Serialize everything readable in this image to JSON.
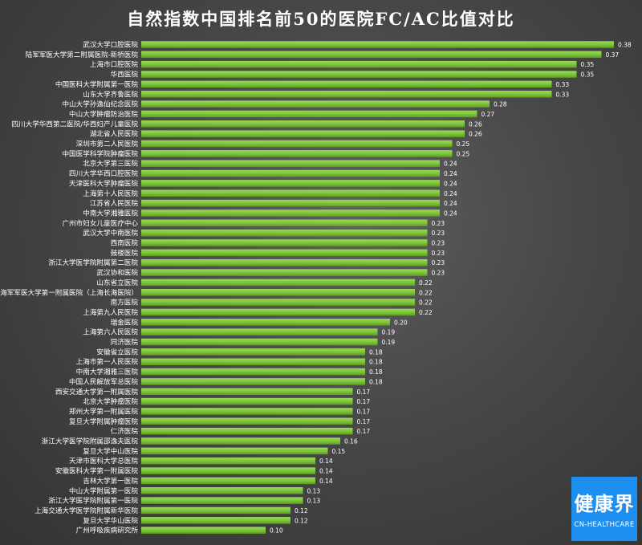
{
  "title": "自然指数中国排名前50的医院FC/AC比值对比",
  "logo": {
    "cn": "健康界",
    "en": "CN-HEALTHCARE"
  },
  "colors": {
    "bar": "#7dc63a",
    "bar_dark": "#5e9e22",
    "text": "#ffffff"
  },
  "chart_data": {
    "type": "bar",
    "orientation": "horizontal",
    "title": "自然指数中国排名前50的医院FC/AC比值对比",
    "xlabel": "",
    "ylabel": "",
    "xlim": [
      0,
      0.4
    ],
    "grid": false,
    "categories": [
      "武汉大学口腔医院",
      "陆军军医大学第二附属医院-新桥医院",
      "上海市口腔医院",
      "华西医院",
      "中国医科大学附属第一医院",
      "山东大学齐鲁医院",
      "中山大学孙逸仙纪念医院",
      "中山大学肿瘤防治医院",
      "四川大学华西第二医院/华西妇产儿童医院",
      "湖北省人民医院",
      "深圳市第二人民医院",
      "中国医学科学院肿瘤医院",
      "北京大学第三医院",
      "四川大学华西口腔医院",
      "天津医科大学肿瘤医院",
      "上海第十人民医院",
      "江苏省人民医院",
      "中南大学湘雅医院",
      "广州市妇女儿童医疗中心",
      "武汉大学中南医院",
      "西南医院",
      "鼓楼医院",
      "浙江大学医学院附属第二医院",
      "武汉协和医院",
      "山东省立医院",
      "海军军医大学第一附属医院（上海长海医院）",
      "南方医院",
      "上海第九人民医院",
      "瑞金医院",
      "上海第六人民医院",
      "同济医院",
      "安徽省立医院",
      "上海市第一人民医院",
      "中南大学湘雅三医院",
      "中国人民解放军总医院",
      "西安交通大学第一附属医院",
      "北京大学肿瘤医院",
      "郑州大学第一附属医院",
      "复旦大学附属肿瘤医院",
      "仁济医院",
      "浙江大学医学院附属邵逸夫医院",
      "复旦大学中山医院",
      "天津市医科大学总医院",
      "安徽医科大学第一附属医院",
      "吉林大学第一医院",
      "中山大学附属第一医院",
      "浙江大学医学院附属第一医院",
      "上海交通大学医学院附属新华医院",
      "复旦大学华山医院",
      "广州呼吸疾病研究所"
    ],
    "values": [
      0.38,
      0.37,
      0.35,
      0.35,
      0.33,
      0.33,
      0.28,
      0.27,
      0.26,
      0.26,
      0.25,
      0.25,
      0.24,
      0.24,
      0.24,
      0.24,
      0.24,
      0.24,
      0.23,
      0.23,
      0.23,
      0.23,
      0.23,
      0.23,
      0.22,
      0.22,
      0.22,
      0.22,
      0.2,
      0.19,
      0.19,
      0.18,
      0.18,
      0.18,
      0.18,
      0.17,
      0.17,
      0.17,
      0.17,
      0.17,
      0.16,
      0.15,
      0.14,
      0.14,
      0.14,
      0.13,
      0.13,
      0.12,
      0.12,
      0.1
    ],
    "value_labels": [
      "0.38",
      "0.37",
      "0.35",
      "0.35",
      "0.33",
      "0.33",
      "0.28",
      "0.27",
      "0.26",
      "0.26",
      "0.25",
      "0.25",
      "0.24",
      "0.24",
      "0.24",
      "0.24",
      "0.24",
      "0.24",
      "0.23",
      "0.23",
      "0.23",
      "0.23",
      "0.23",
      "0.23",
      "0.22",
      "0.22",
      "0.22",
      "0.22",
      "0.20",
      "0.19",
      "0.19",
      "0.18",
      "0.18",
      "0.18",
      "0.18",
      "0.17",
      "0.17",
      "0.17",
      "0.17",
      "0.17",
      "0.16",
      "0.15",
      "0.14",
      "0.14",
      "0.14",
      "0.13",
      "0.13",
      "0.12",
      "0.12",
      "0.10"
    ]
  }
}
